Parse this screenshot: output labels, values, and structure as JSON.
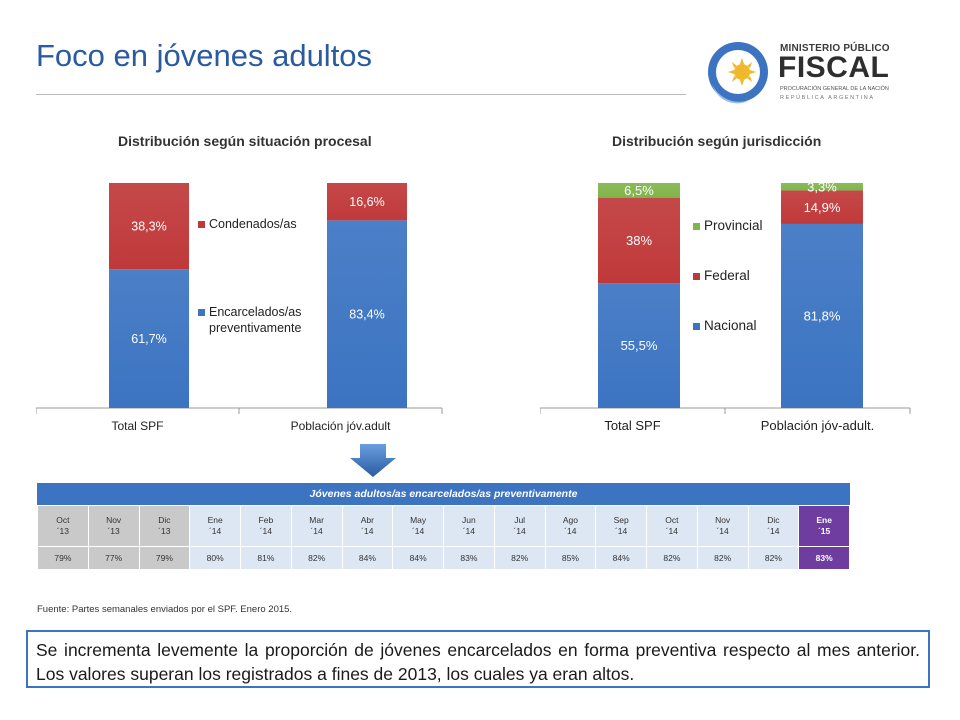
{
  "header": {
    "title": "Foco en jóvenes adultos"
  },
  "logo": {
    "line1": "MINISTERIO PÚBLICO",
    "line2": "FISCAL",
    "line3": "PROCURACIÓN GENERAL DE LA NACIÓN",
    "line4": "REPÚBLICA ARGENTINA"
  },
  "colors": {
    "blue": "#3c74c2",
    "red": "#c0393a",
    "green": "#80b54a",
    "purple": "#6f3da0"
  },
  "chart_data": [
    {
      "type": "bar",
      "stacked": true,
      "title": "Distribución según situación procesal",
      "categories": [
        "Total SPF",
        "Población jóv.adult"
      ],
      "series": [
        {
          "name": "Encarcelados/as preventivamente",
          "values": [
            61.7,
            83.4
          ],
          "labels": [
            "61,7%",
            "83,4%"
          ],
          "color": "#3c74c2"
        },
        {
          "name": "Condenados/as",
          "values": [
            38.3,
            16.6
          ],
          "labels": [
            "38,3%",
            "16,6%"
          ],
          "color": "#c0393a"
        }
      ],
      "legend_labels": [
        "Condenados/as",
        "Encarcelados/as",
        "preventivamente"
      ],
      "ylim": [
        0,
        100
      ],
      "legend": "right"
    },
    {
      "type": "bar",
      "stacked": true,
      "title": "Distribución según jurisdicción",
      "categories": [
        "Total SPF",
        "Población jóv-adult."
      ],
      "series": [
        {
          "name": "Nacional",
          "values": [
            55.5,
            81.8
          ],
          "labels": [
            "55,5%",
            "81,8%"
          ],
          "color": "#3c74c2"
        },
        {
          "name": "Federal",
          "values": [
            38,
            14.9
          ],
          "labels": [
            "38%",
            "14,9%"
          ],
          "color": "#c0393a"
        },
        {
          "name": "Provincial",
          "values": [
            6.5,
            3.3
          ],
          "labels": [
            "6,5%",
            "3,3%"
          ],
          "color": "#80b54a"
        }
      ],
      "legend_labels": [
        "Provincial",
        "Federal",
        "Nacional"
      ],
      "ylim": [
        0,
        100
      ],
      "legend": "right"
    }
  ],
  "table": {
    "title": "Jóvenes adultos/as encarcelados/as preventivamente",
    "columns": [
      {
        "m": "Oct",
        "y": "´13",
        "v": "79%",
        "style": "g"
      },
      {
        "m": "Nov",
        "y": "´13",
        "v": "77%",
        "style": "g"
      },
      {
        "m": "Dic",
        "y": "´13",
        "v": "79%",
        "style": "g"
      },
      {
        "m": "Ene",
        "y": "´14",
        "v": "80%",
        "style": "b"
      },
      {
        "m": "Feb",
        "y": "´14",
        "v": "81%",
        "style": "b"
      },
      {
        "m": "Mar",
        "y": "´14",
        "v": "82%",
        "style": "b"
      },
      {
        "m": "Abr",
        "y": "´14",
        "v": "84%",
        "style": "b"
      },
      {
        "m": "May",
        "y": "´14",
        "v": "84%",
        "style": "b"
      },
      {
        "m": "Jun",
        "y": "´14",
        "v": "83%",
        "style": "b"
      },
      {
        "m": "Jul",
        "y": "´14",
        "v": "82%",
        "style": "b"
      },
      {
        "m": "Ago",
        "y": "´14",
        "v": "85%",
        "style": "b"
      },
      {
        "m": "Sep",
        "y": "´14",
        "v": "84%",
        "style": "b"
      },
      {
        "m": "Oct",
        "y": "´14",
        "v": "82%",
        "style": "b"
      },
      {
        "m": "Nov",
        "y": "´14",
        "v": "82%",
        "style": "b"
      },
      {
        "m": "Dic",
        "y": "´14",
        "v": "82%",
        "style": "b"
      },
      {
        "m": "Ene",
        "y": "´15",
        "v": "83%",
        "style": "p"
      }
    ]
  },
  "source": "Fuente: Partes semanales enviados por el SPF. Enero 2015.",
  "note": "Se incrementa levemente la proporción de jóvenes encarcelados en forma preventiva respecto al mes anterior. Los valores superan los registrados a fines de 2013, los cuales ya eran altos."
}
